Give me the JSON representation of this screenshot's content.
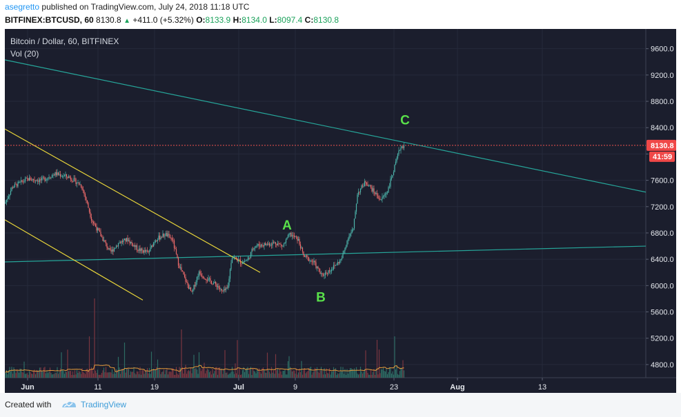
{
  "header": {
    "author": "asegretto",
    "published_text": "published on TradingView.com, July 24, 2018 11:18 UTC",
    "symbol": "BITFINEX:BTCUSD, 60",
    "last": "8130.8",
    "change": "+411.0 (+5.32%)",
    "o_label": "O:",
    "o_value": "8133.9",
    "h_label": "H:",
    "h_value": "8134.0",
    "l_label": "L:",
    "l_value": "8097.4",
    "c_label": "C:",
    "c_value": "8130.8"
  },
  "footer": {
    "created_with": "Created with",
    "brand": "TradingView"
  },
  "chart_data": {
    "type": "candlestick",
    "title": "Bitcoin / Dollar, 60, BITFINEX",
    "indicator": "Vol (20)",
    "ylim": [
      4600,
      9900
    ],
    "y_ticks": [
      "9600.0",
      "9200.0",
      "8800.0",
      "8400.0",
      "8000.0",
      "7600.0",
      "7200.0",
      "6800.0",
      "6400.0",
      "6000.0",
      "5600.0",
      "5200.0",
      "4800.0"
    ],
    "x_ticks": [
      {
        "label": "Jun",
        "bold": true
      },
      {
        "label": "11",
        "bold": false
      },
      {
        "label": "19",
        "bold": false
      },
      {
        "label": "Jul",
        "bold": true
      },
      {
        "label": "9",
        "bold": false
      },
      {
        "label": "23",
        "bold": false
      },
      {
        "label": "Aug",
        "bold": true
      },
      {
        "label": "13",
        "bold": false
      }
    ],
    "price_label": "8130.8",
    "countdown": "41:59",
    "price_anchors": [
      [
        0,
        6950
      ],
      [
        5,
        7200
      ],
      [
        18,
        7500
      ],
      [
        40,
        7620
      ],
      [
        60,
        7600
      ],
      [
        80,
        7700
      ],
      [
        100,
        7650
      ],
      [
        118,
        7520
      ],
      [
        125,
        7300
      ],
      [
        133,
        7000
      ],
      [
        145,
        6780
      ],
      [
        160,
        6500
      ],
      [
        172,
        6650
      ],
      [
        185,
        6700
      ],
      [
        200,
        6550
      ],
      [
        215,
        6500
      ],
      [
        225,
        6700
      ],
      [
        240,
        6780
      ],
      [
        250,
        6700
      ],
      [
        258,
        6350
      ],
      [
        270,
        6050
      ],
      [
        278,
        5880
      ],
      [
        288,
        6200
      ],
      [
        300,
        6100
      ],
      [
        315,
        6000
      ],
      [
        322,
        5900
      ],
      [
        330,
        5950
      ],
      [
        336,
        6450
      ],
      [
        350,
        6350
      ],
      [
        360,
        6400
      ],
      [
        368,
        6600
      ],
      [
        380,
        6620
      ],
      [
        400,
        6650
      ],
      [
        410,
        6600
      ],
      [
        420,
        6780
      ],
      [
        432,
        6700
      ],
      [
        440,
        6450
      ],
      [
        455,
        6350
      ],
      [
        466,
        6150
      ],
      [
        480,
        6250
      ],
      [
        495,
        6400
      ],
      [
        505,
        6750
      ],
      [
        512,
        6850
      ],
      [
        518,
        7400
      ],
      [
        530,
        7580
      ],
      [
        540,
        7450
      ],
      [
        552,
        7300
      ],
      [
        562,
        7450
      ],
      [
        572,
        7800
      ],
      [
        580,
        8100
      ],
      [
        586,
        8130.8
      ]
    ],
    "trendlines": [
      {
        "name": "upper-descending-green",
        "color": "#26a69a",
        "points": [
          [
            7,
            9430
          ],
          [
            936,
            7420
          ]
        ]
      },
      {
        "name": "lower-ascending-green",
        "color": "#26a69a",
        "points": [
          [
            7,
            6360
          ],
          [
            936,
            6600
          ]
        ]
      },
      {
        "name": "upper-yellow",
        "color": "#e8d53a",
        "points": [
          [
            7,
            8380
          ],
          [
            377,
            6200
          ]
        ]
      },
      {
        "name": "lower-yellow",
        "color": "#e8d53a",
        "points": [
          [
            7,
            7000
          ],
          [
            207,
            5780
          ]
        ]
      }
    ],
    "annotations": [
      {
        "label": "A",
        "x": 416,
        "y": 6850
      },
      {
        "label": "B",
        "x": 465,
        "y": 5760
      },
      {
        "label": "C",
        "x": 587,
        "y": 8450
      }
    ]
  }
}
